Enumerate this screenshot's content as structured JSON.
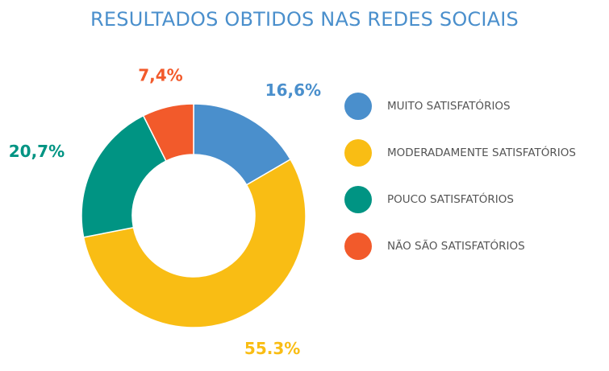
{
  "chart_data": {
    "type": "pie",
    "title": "RESULTADOS OBTIDOS NAS REDES SOCIAIS",
    "legend_position": "right",
    "donut": true,
    "series": [
      {
        "name": "MUITO SATISFATÓRIOS",
        "value": 16.6,
        "label": "16,6%",
        "color": "#4a8fcc"
      },
      {
        "name": "MODERADAMENTE SATISFATÓRIOS",
        "value": 55.3,
        "label": "55.3%",
        "color": "#f9bd14"
      },
      {
        "name": "POUCO SATISFATÓRIOS",
        "value": 20.7,
        "label": "20,7%",
        "color": "#009483"
      },
      {
        "name": "NÃO SÃO SATISFATÓRIOS",
        "value": 7.4,
        "label": "7,4%",
        "color": "#f25a2b"
      }
    ]
  }
}
